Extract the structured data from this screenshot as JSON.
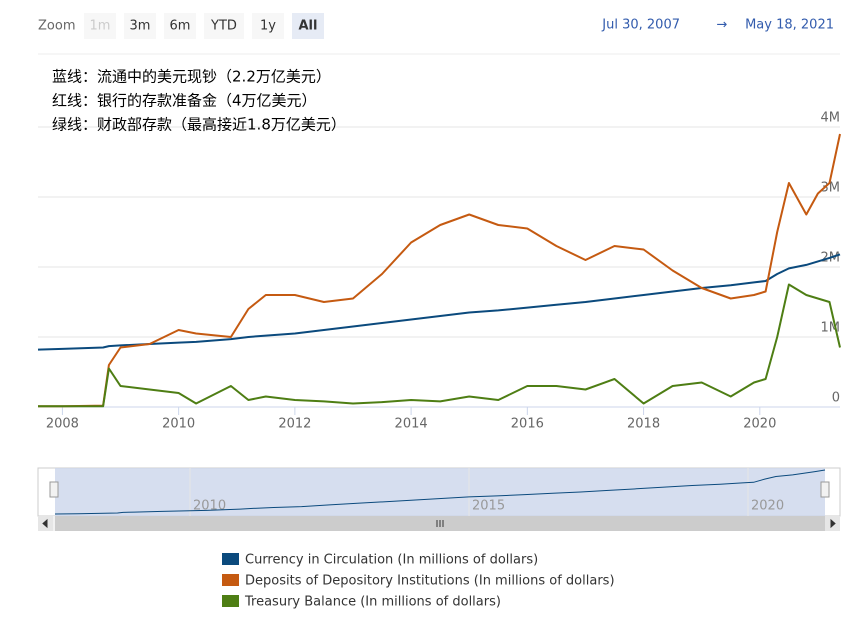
{
  "range_selector": {
    "label": "Zoom",
    "buttons": [
      "1m",
      "3m",
      "6m",
      "YTD",
      "1y",
      "All"
    ],
    "from": "Jul 30, 2007",
    "arrow": "→",
    "to": "May 18, 2021"
  },
  "chart_data": {
    "type": "line",
    "annotations": [
      "蓝线：流通中的美元现钞（2.2万亿美元）",
      "红线：银行的存款准备金（4万亿美元）",
      "绿线：财政部存款（最高接近1.8万亿美元）"
    ],
    "x": [
      2007.58,
      2008,
      2008.7,
      2008.8,
      2009,
      2009.5,
      2010,
      2010.3,
      2010.9,
      2011.2,
      2011.5,
      2012,
      2012.5,
      2013,
      2013.5,
      2014,
      2014.5,
      2015,
      2015.5,
      2016,
      2016.5,
      2017,
      2017.5,
      2018,
      2018.5,
      2019,
      2019.5,
      2019.9,
      2020.1,
      2020.3,
      2020.5,
      2020.8,
      2021,
      2021.2,
      2021.38
    ],
    "series": [
      {
        "name": "Currency in Circulation (In millions of dollars)",
        "color": "#0b4a7d",
        "values": [
          820000,
          830000,
          850000,
          870000,
          880000,
          900000,
          920000,
          930000,
          970000,
          1000000,
          1020000,
          1050000,
          1100000,
          1150000,
          1200000,
          1250000,
          1300000,
          1350000,
          1380000,
          1420000,
          1460000,
          1500000,
          1550000,
          1600000,
          1650000,
          1700000,
          1740000,
          1780000,
          1800000,
          1900000,
          1980000,
          2030000,
          2080000,
          2130000,
          2180000
        ]
      },
      {
        "name": "Deposits of Depository Institutions (In millions of dollars)",
        "color": "#c55a11",
        "values": [
          10000,
          10000,
          20000,
          600000,
          850000,
          900000,
          1100000,
          1050000,
          1000000,
          1400000,
          1600000,
          1600000,
          1500000,
          1550000,
          1900000,
          2350000,
          2600000,
          2750000,
          2600000,
          2550000,
          2300000,
          2100000,
          2300000,
          2250000,
          1950000,
          1700000,
          1550000,
          1600000,
          1650000,
          2500000,
          3200000,
          2750000,
          3050000,
          3200000,
          3900000
        ]
      },
      {
        "name": "Treasury Balance (In millions of dollars)",
        "color": "#4e7e14",
        "values": [
          10000,
          10000,
          10000,
          550000,
          300000,
          250000,
          200000,
          50000,
          300000,
          100000,
          150000,
          100000,
          80000,
          50000,
          70000,
          100000,
          80000,
          150000,
          100000,
          300000,
          300000,
          250000,
          400000,
          50000,
          300000,
          350000,
          150000,
          350000,
          400000,
          1000000,
          1750000,
          1600000,
          1550000,
          1500000,
          850000
        ]
      }
    ],
    "xlim": [
      2007.58,
      2021.38
    ],
    "xticks": [
      2008,
      2010,
      2012,
      2014,
      2016,
      2018,
      2020
    ],
    "ylim": [
      0,
      4000000
    ],
    "yticks": [
      0,
      {
        "value": 1000000,
        "label": "1M"
      },
      {
        "value": 2000000,
        "label": "2M"
      },
      {
        "value": 3000000,
        "label": "3M"
      },
      {
        "value": 4000000,
        "label": "4M"
      }
    ],
    "grid": true,
    "navigator_xticks": [
      2010,
      2015,
      2020
    ]
  }
}
